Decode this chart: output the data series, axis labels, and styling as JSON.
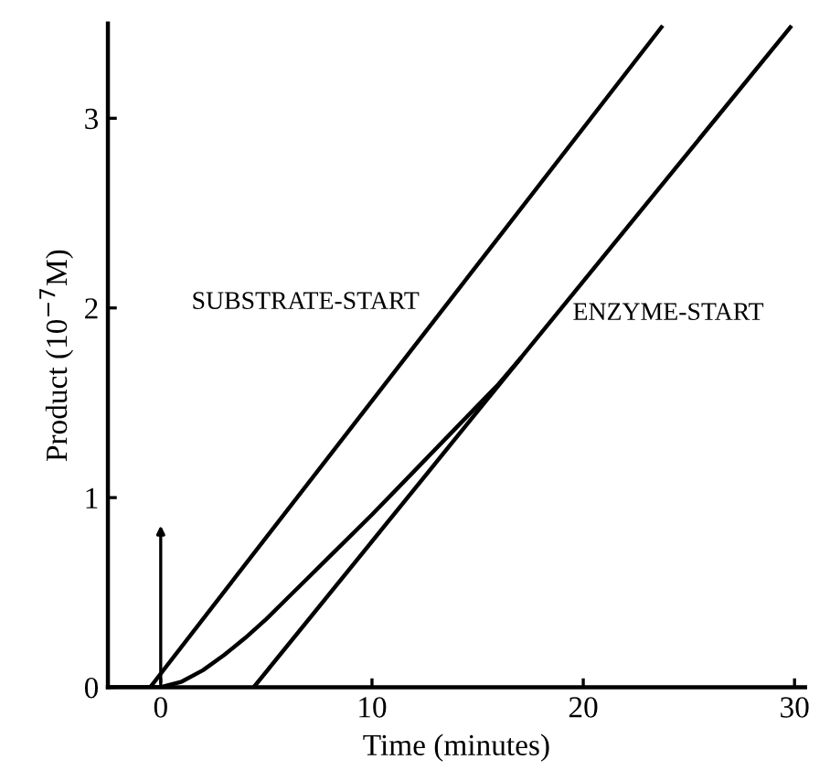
{
  "chart_data": {
    "type": "line",
    "xlabel": "Time (minutes)",
    "ylabel": "Product (10$^{−7}$M)",
    "xlim": [
      -2.5,
      30.5
    ],
    "ylim": [
      0,
      3.5
    ],
    "xticks": [
      0,
      10,
      20,
      30
    ],
    "yticks": [
      0,
      1,
      2,
      3
    ],
    "grid": false,
    "legend": false,
    "marker": "none",
    "line_style": "solid",
    "series": [
      {
        "name": "SUBSTRATE-START",
        "color": "#000000",
        "x": [
          -2.5,
          -0.5,
          23.7
        ],
        "values": [
          0,
          0,
          3.48
        ]
      },
      {
        "name": "ENZYME-START",
        "color": "#000000",
        "x": [
          -0.5,
          0,
          1,
          2,
          3,
          4,
          5,
          6,
          7,
          8,
          9,
          10,
          12,
          14,
          16,
          17,
          29.8
        ],
        "values": [
          0,
          0,
          0.03,
          0.09,
          0.17,
          0.26,
          0.36,
          0.47,
          0.58,
          0.69,
          0.8,
          0.91,
          1.14,
          1.37,
          1.6,
          1.73,
          3.48
        ]
      },
      {
        "color": "#000000",
        "x": [
          4.4,
          17
        ],
        "values": [
          0,
          1.73
        ]
      }
    ]
  }
}
